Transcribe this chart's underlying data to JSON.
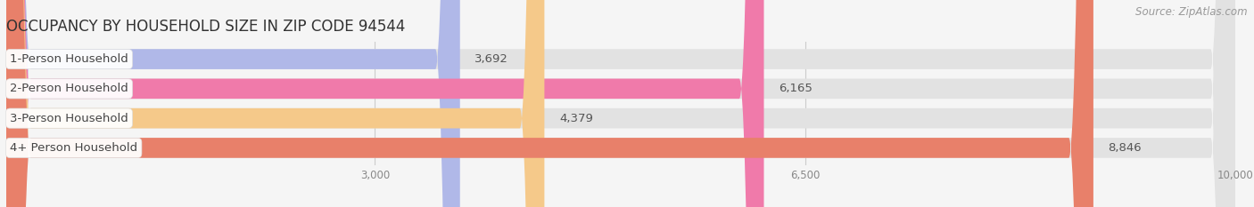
{
  "title": "OCCUPANCY BY HOUSEHOLD SIZE IN ZIP CODE 94544",
  "source": "Source: ZipAtlas.com",
  "categories": [
    "1-Person Household",
    "2-Person Household",
    "3-Person Household",
    "4+ Person Household"
  ],
  "values": [
    3692,
    6165,
    4379,
    8846
  ],
  "bar_colors": [
    "#b0b8e8",
    "#f07aaa",
    "#f5c98a",
    "#e8806a"
  ],
  "xlim": [
    0,
    10000
  ],
  "xticks": [
    3000,
    6500,
    10000
  ],
  "xtick_labels": [
    "3,000",
    "6,500",
    "10,000"
  ],
  "background_color": "#f5f5f5",
  "bar_bg_color": "#e2e2e2",
  "title_fontsize": 12,
  "source_fontsize": 8.5,
  "label_fontsize": 9.5,
  "value_fontsize": 9.5,
  "bar_height": 0.68,
  "figsize": [
    14.06,
    2.33
  ],
  "dpi": 100
}
